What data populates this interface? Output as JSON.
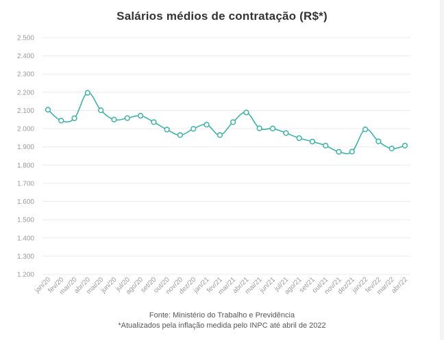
{
  "title": "Salários médios de contratação (R$*)",
  "source": "Fonte: Ministério do Trabalho e Previdência",
  "footnote": "*Atualizados pela inflação medida pelo INPC até abril de 2022",
  "colors": {
    "line": "#3bb3a6",
    "marker_fill": "#ffffff",
    "grid": "#ebebeb",
    "tick_text": "#9a9a9a"
  },
  "chart_data": {
    "type": "line",
    "title": "Salários médios de contratação (R$*)",
    "xlabel": "",
    "ylabel": "",
    "ylim": [
      1200,
      2500
    ],
    "yticks": [
      1200,
      1300,
      1400,
      1500,
      1600,
      1700,
      1800,
      1900,
      2000,
      2100,
      2200,
      2300,
      2400,
      2500
    ],
    "ytick_labels": [
      "1.200",
      "1.300",
      "1.400",
      "1.500",
      "1.600",
      "1.700",
      "1.800",
      "1.900",
      "2.000",
      "2.100",
      "2.200",
      "2.300",
      "2.400",
      "2.500"
    ],
    "grid": true,
    "legend": "none",
    "categories": [
      "jan/20",
      "fev/20",
      "mar/20",
      "abr/20",
      "mai/20",
      "jun/20",
      "jul/20",
      "ago/20",
      "set/20",
      "out/20",
      "nov/20",
      "dez/20",
      "jan/21",
      "fev/21",
      "mar/21",
      "abr/21",
      "mai/21",
      "jun/21",
      "jul/21",
      "ago/21",
      "set/21",
      "out/21",
      "nov/21",
      "dez/21",
      "jan/22",
      "fev/22",
      "mar/22",
      "abr/22"
    ],
    "series": [
      {
        "values": [
          2104,
          2044,
          2057,
          2197,
          2101,
          2050,
          2058,
          2071,
          2036,
          1995,
          1965,
          1999,
          2022,
          1965,
          2036,
          2089,
          2002,
          2001,
          1976,
          1948,
          1929,
          1907,
          1873,
          1874,
          1996,
          1930,
          1891,
          1907
        ]
      }
    ]
  }
}
